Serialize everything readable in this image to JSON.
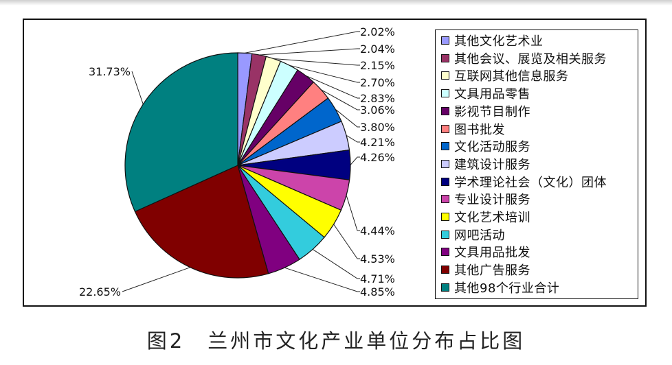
{
  "caption": "图2　兰州市文化产业单位分布占比图",
  "chart_data": {
    "type": "pie",
    "title": "",
    "legend_position": "right",
    "slices": [
      {
        "label": "其他文化艺术业",
        "value": 2.02,
        "value_label": "2.02%",
        "color": "#9999ff"
      },
      {
        "label": "其他会议、展览及相关服务",
        "value": 2.04,
        "value_label": "2.04%",
        "color": "#993366"
      },
      {
        "label": "互联网其他信息服务",
        "value": 2.15,
        "value_label": "2.15%",
        "color": "#ffffcc"
      },
      {
        "label": "文具用品零售",
        "value": 2.7,
        "value_label": "2.70%",
        "color": "#ccffff"
      },
      {
        "label": "影视节目制作",
        "value": 2.83,
        "value_label": "2.83%",
        "color": "#660066"
      },
      {
        "label": "图书批发",
        "value": 3.06,
        "value_label": "3.06%",
        "color": "#ff8080"
      },
      {
        "label": "文化活动服务",
        "value": 3.8,
        "value_label": "3.80%",
        "color": "#0066cc"
      },
      {
        "label": "建筑设计服务",
        "value": 4.21,
        "value_label": "4.21%",
        "color": "#ccccff"
      },
      {
        "label": "学术理论社会（文化）团体",
        "value": 4.26,
        "value_label": "4.26%",
        "color": "#000080"
      },
      {
        "label": "专业设计服务",
        "value": 4.44,
        "value_label": "4.44%",
        "color": "#cc44aa"
      },
      {
        "label": "文化艺术培训",
        "value": 4.53,
        "value_label": "4.53%",
        "color": "#ffff00"
      },
      {
        "label": "网吧活动",
        "value": 4.71,
        "value_label": "4.71%",
        "color": "#33ccdd"
      },
      {
        "label": "文具用品批发",
        "value": 4.85,
        "value_label": "4.85%",
        "color": "#800080"
      },
      {
        "label": "其他广告服务",
        "value": 22.65,
        "value_label": "22.65%",
        "color": "#800000"
      },
      {
        "label": "其他98个行业合计",
        "value": 31.73,
        "value_label": "31.73%",
        "color": "#008080"
      }
    ]
  }
}
